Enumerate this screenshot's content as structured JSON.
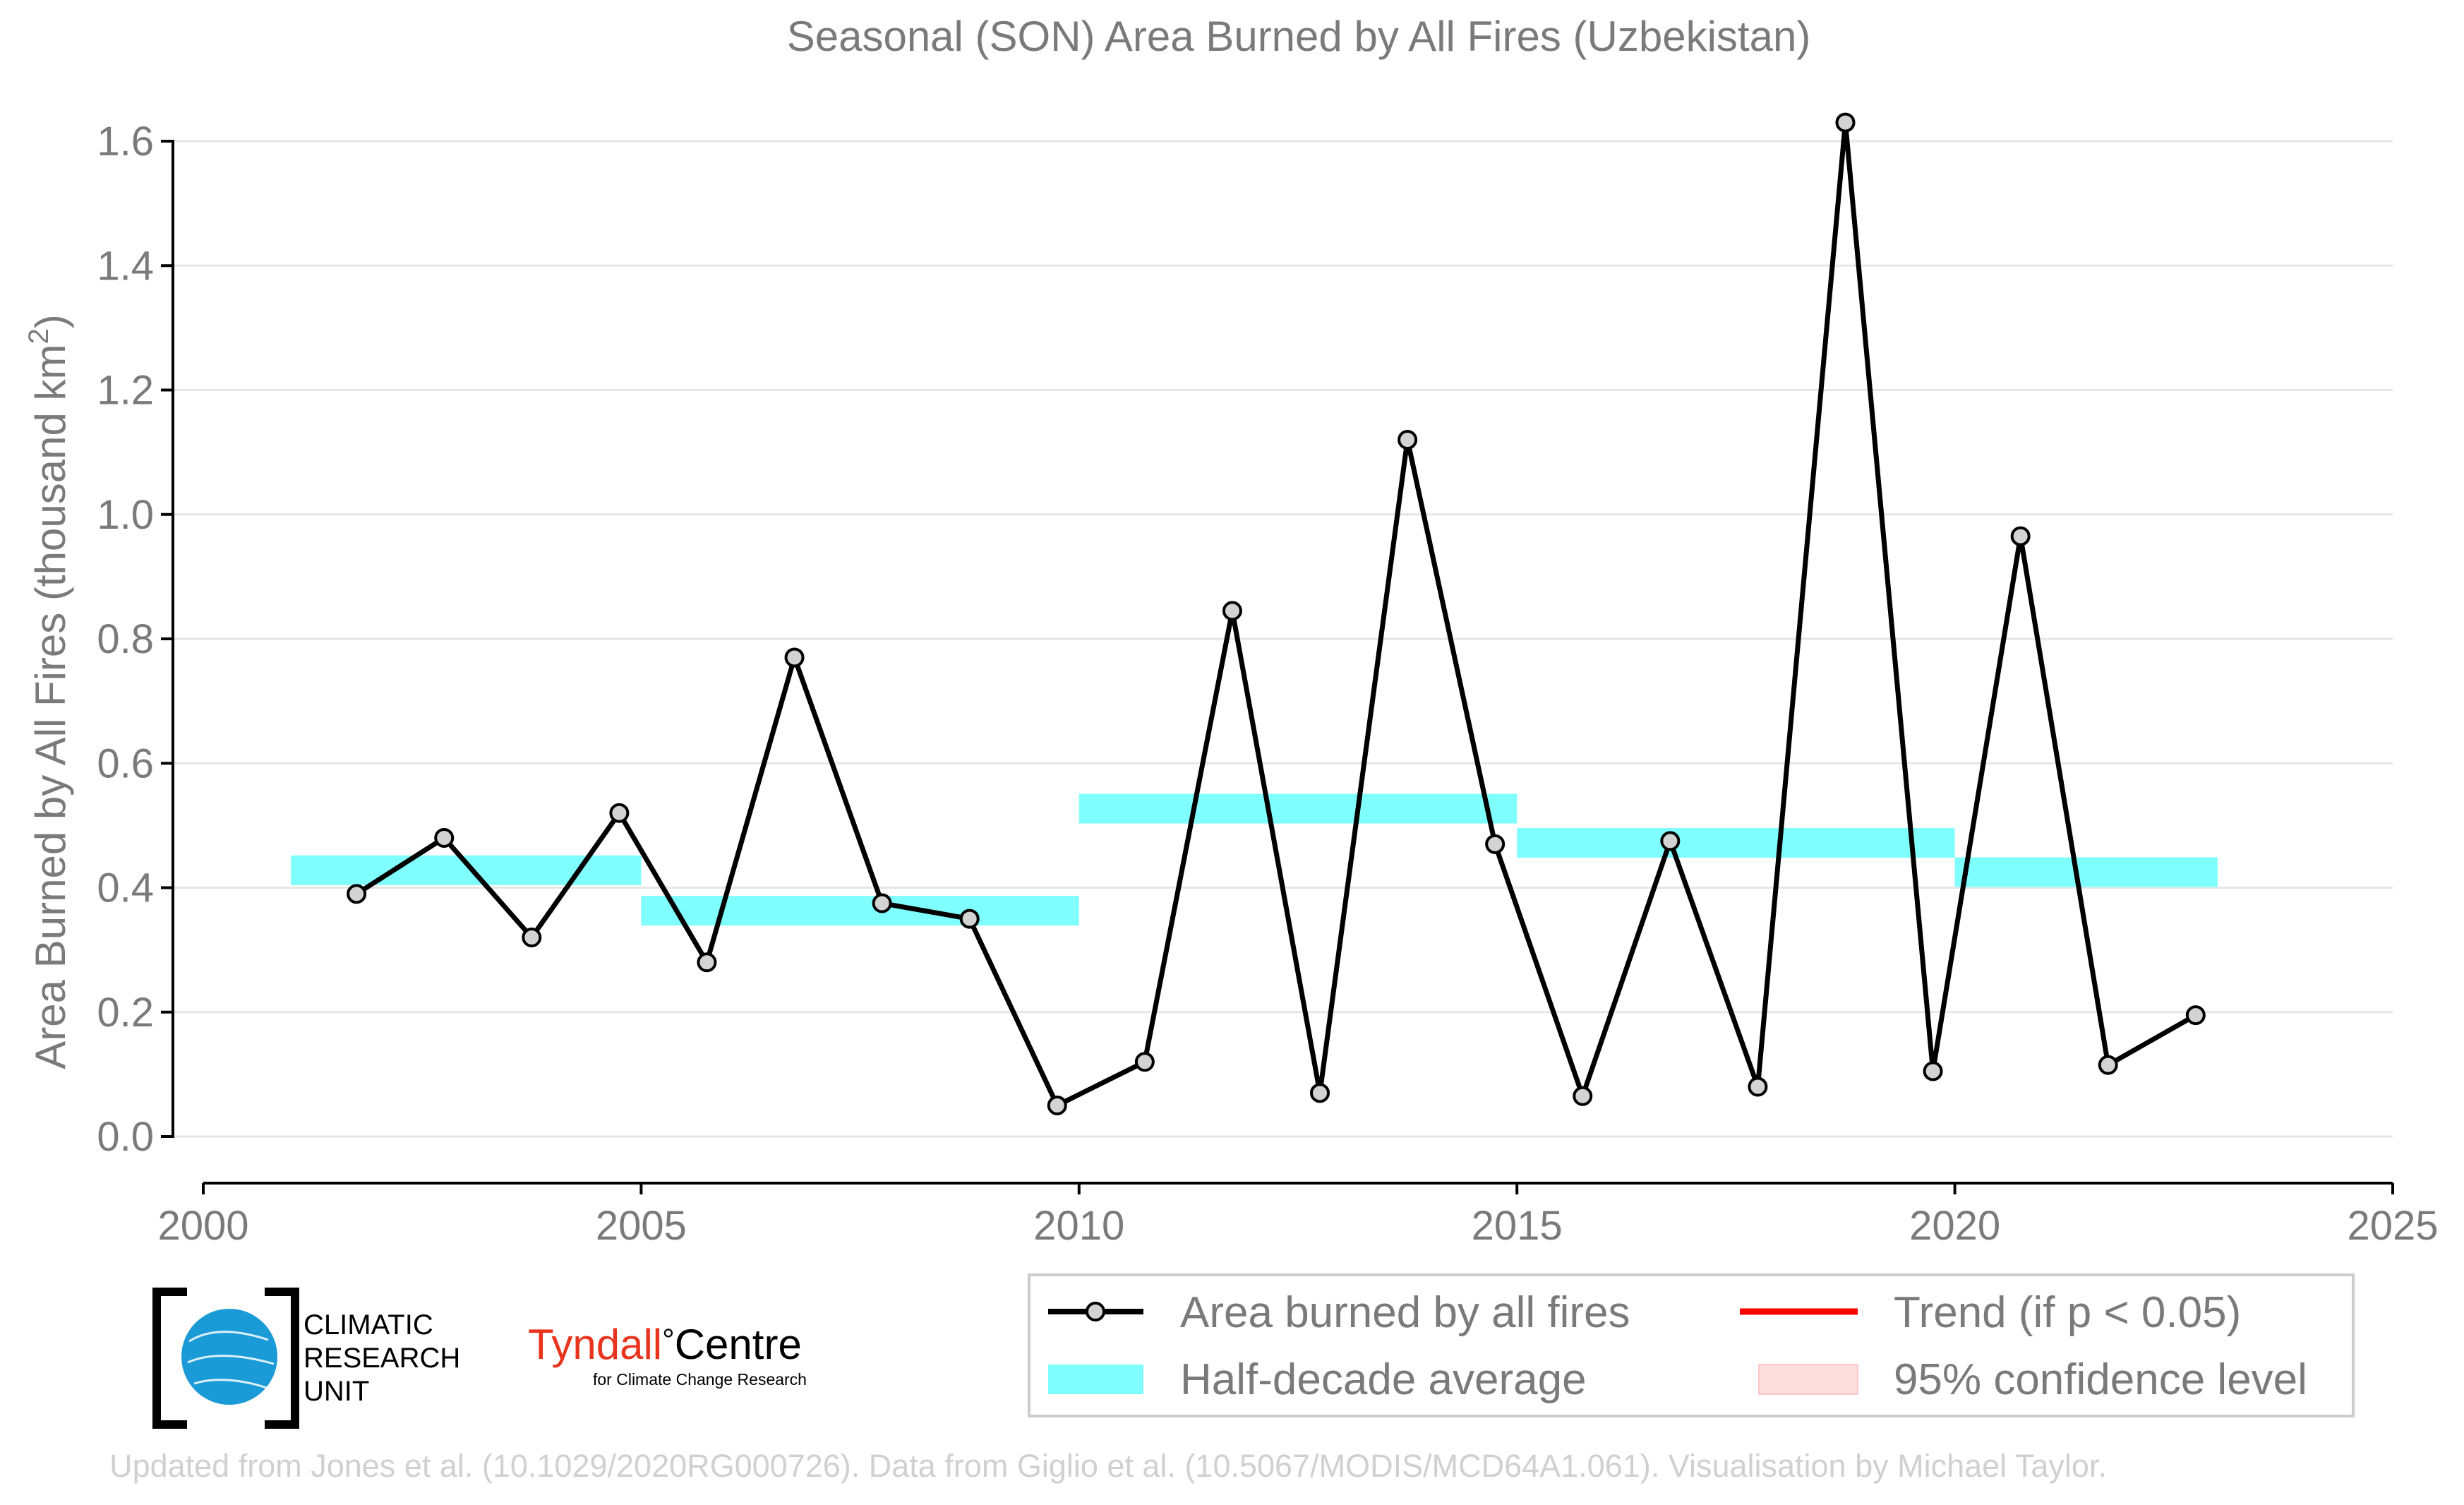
{
  "chart_data": {
    "type": "line",
    "title": "Seasonal (SON) Area Burned by All Fires (Uzbekistan)",
    "ylabel_prefix": "Area Burned by All Fires (thousand km",
    "ylabel_sup": "2",
    "ylabel_suffix": ")",
    "xlim": [
      2000,
      2025
    ],
    "ylim": [
      0.0,
      1.6
    ],
    "x_ticks": [
      2000,
      2005,
      2010,
      2015,
      2020,
      2025
    ],
    "x_tick_labels": [
      "2000",
      "2005",
      "2010",
      "2015",
      "2020",
      "2025"
    ],
    "y_ticks": [
      0.0,
      0.2,
      0.4,
      0.6,
      0.8,
      1.0,
      1.2,
      1.4,
      1.6
    ],
    "y_tick_labels": [
      "0.0",
      "0.2",
      "0.4",
      "0.6",
      "0.8",
      "1.0",
      "1.2",
      "1.4",
      "1.6"
    ],
    "grid": "horizontal",
    "series": [
      {
        "name": "Area burned by all fires",
        "x": [
          2001.75,
          2002.75,
          2003.75,
          2004.75,
          2005.75,
          2006.75,
          2007.75,
          2008.75,
          2009.75,
          2010.75,
          2011.75,
          2012.75,
          2013.75,
          2014.75,
          2015.75,
          2016.75,
          2017.75,
          2018.75,
          2019.75,
          2020.75,
          2021.75,
          2022.75
        ],
        "values": [
          0.39,
          0.48,
          0.32,
          0.52,
          0.28,
          0.77,
          0.375,
          0.35,
          0.05,
          0.12,
          0.845,
          0.07,
          1.12,
          0.47,
          0.065,
          0.475,
          0.08,
          1.63,
          0.105,
          0.965,
          0.115,
          0.195
        ],
        "color": "#000000",
        "marker_color": "#d3d3d3"
      }
    ],
    "half_decade_averages": [
      {
        "start": 2001,
        "end": 2005,
        "value": 0.428
      },
      {
        "start": 2005,
        "end": 2010,
        "value": 0.363
      },
      {
        "start": 2010,
        "end": 2015,
        "value": 0.527
      },
      {
        "start": 2015,
        "end": 2020,
        "value": 0.472
      },
      {
        "start": 2020,
        "end": 2023,
        "value": 0.425
      }
    ],
    "half_decade_color": "#80ffff",
    "legend": {
      "position": "bottom-right",
      "items": [
        {
          "label": "Area burned by all fires",
          "kind": "line-marker",
          "color": "#000000"
        },
        {
          "label": "Trend (if p < 0.05)",
          "kind": "line",
          "color": "#ff0000"
        },
        {
          "label": "Half-decade average",
          "kind": "band",
          "color": "#80ffff"
        },
        {
          "label": "95% confidence level",
          "kind": "band",
          "color": "#ffdede"
        }
      ]
    }
  },
  "logos": {
    "cru_lines": [
      "CLIMATIC",
      "RESEARCH",
      "UNIT"
    ],
    "tyndall_main": "Tyndall",
    "tyndall_degree": "°",
    "tyndall_centre": "Centre",
    "tyndall_sub": "for Climate Change Research"
  },
  "footer": "Updated from Jones et al. (10.1029/2020RG000726). Data from Giglio et al. (10.5067/MODIS/MCD64A1.061). Visualisation by Michael Taylor."
}
